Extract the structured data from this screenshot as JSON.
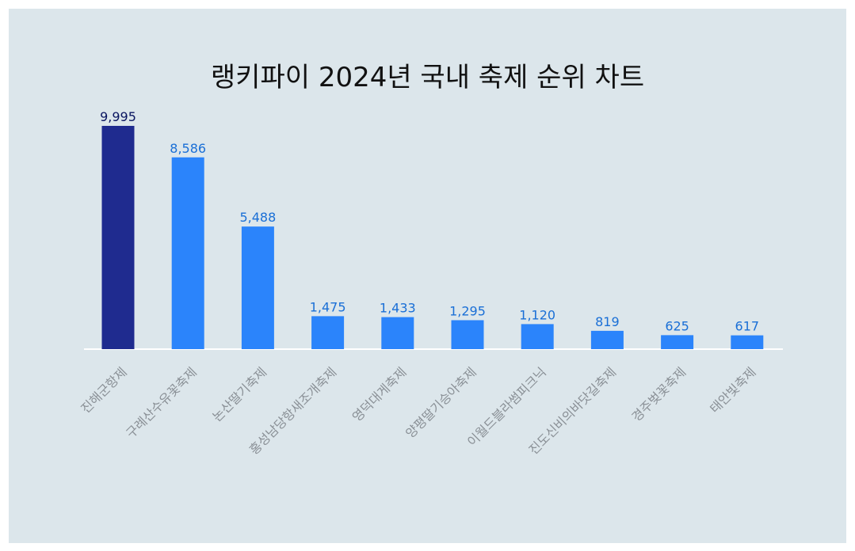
{
  "title": "랭키파이 2024년 국내 축제 순위 차트",
  "colors": {
    "background": "#dce6eb",
    "highlight_bar": "#1f2b8f",
    "bar": "#2b84fb",
    "highlight_label": "#0a1560",
    "label": "#1a6fd6",
    "axis_label": "#8a9096",
    "baseline": "#ffffff"
  },
  "chart_data": {
    "type": "bar",
    "title": "랭키파이 2024년 국내 축제 순위 차트",
    "categories": [
      "진해군항제",
      "구례산수유꽃축제",
      "논산딸기축제",
      "홍성남당항새조개축제",
      "영덕대게축제",
      "양평딸기승아축제",
      "이월드블라썸피크닉",
      "진도신비의바닷길축제",
      "경주벚꽃축제",
      "태안빛축제"
    ],
    "values": [
      9995,
      8586,
      5488,
      1475,
      1433,
      1295,
      1120,
      819,
      625,
      617
    ],
    "value_labels": [
      "9,995",
      "8,586",
      "5,488",
      "1,475",
      "1,433",
      "1,295",
      "1,120",
      "819",
      "625",
      "617"
    ],
    "highlight_index": 0,
    "ylim": [
      0,
      9995
    ],
    "grid": false,
    "legend": "none"
  }
}
